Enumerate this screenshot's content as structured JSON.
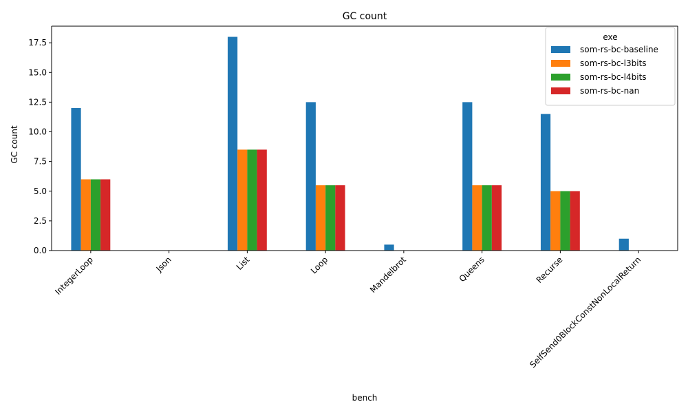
{
  "chart_data": {
    "type": "bar",
    "title": "GC count",
    "xlabel": "bench",
    "ylabel": "GC count",
    "ylim": [
      0,
      18.9
    ],
    "yticks": [
      0.0,
      2.5,
      5.0,
      7.5,
      10.0,
      12.5,
      15.0,
      17.5
    ],
    "ytick_labels": [
      "0.0",
      "2.5",
      "5.0",
      "7.5",
      "10.0",
      "12.5",
      "15.0",
      "17.5"
    ],
    "categories": [
      "IntegerLoop",
      "Json",
      "List",
      "Loop",
      "Mandelbrot",
      "Queens",
      "Recurse",
      "SelfSend0BlockConstNonLocalReturn"
    ],
    "legend": {
      "title": "exe",
      "placement": "top-right"
    },
    "grid": false,
    "series": [
      {
        "name": "som-rs-bc-baseline",
        "color": "#1f77b4",
        "values": [
          12.0,
          0,
          18.0,
          12.5,
          0.5,
          12.5,
          11.5,
          1.0
        ]
      },
      {
        "name": "som-rs-bc-l3bits",
        "color": "#ff7f0e",
        "values": [
          6.0,
          0,
          8.5,
          5.5,
          0,
          5.5,
          5.0,
          0
        ]
      },
      {
        "name": "som-rs-bc-l4bits",
        "color": "#2ca02c",
        "values": [
          6.0,
          0,
          8.5,
          5.5,
          0,
          5.5,
          5.0,
          0
        ]
      },
      {
        "name": "som-rs-bc-nan",
        "color": "#d62728",
        "values": [
          6.0,
          0,
          8.5,
          5.5,
          0,
          5.5,
          5.0,
          0
        ]
      }
    ]
  }
}
